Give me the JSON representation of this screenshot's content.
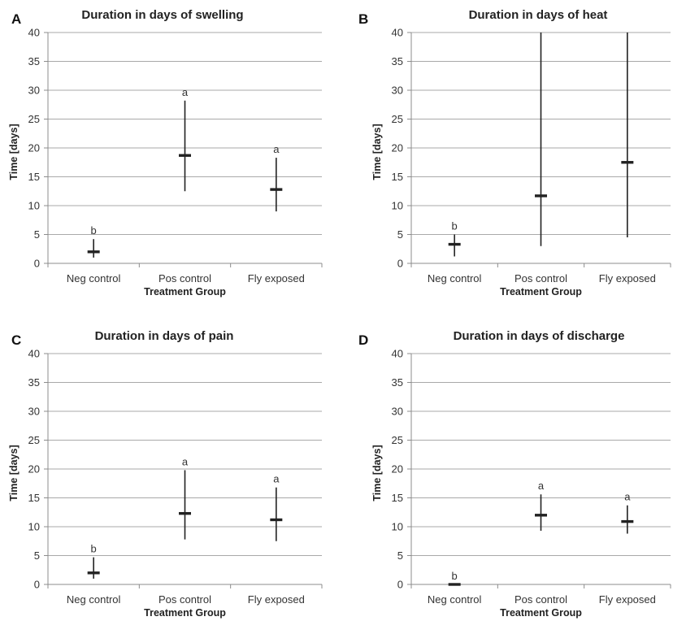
{
  "chart_data": [
    {
      "type": "range",
      "letter": "A",
      "title": "Duration in days of swelling",
      "xlabel": "Treatment Group",
      "ylabel": "Time [days]",
      "ylim": [
        0,
        40
      ],
      "yticks": [
        0,
        5,
        10,
        15,
        20,
        25,
        30,
        35,
        40
      ],
      "categories": [
        "Neg control",
        "Pos control",
        "Fly exposed"
      ],
      "median": [
        2,
        18.7,
        12.8
      ],
      "low": [
        1,
        12.5,
        9
      ],
      "high": [
        4.2,
        28.2,
        18.3
      ],
      "labels": [
        "b",
        "a",
        "a"
      ]
    },
    {
      "type": "range",
      "letter": "B",
      "title": "Duration in days of heat",
      "xlabel": "Treatment Group",
      "ylabel": "Time [days]",
      "ylim": [
        0,
        40
      ],
      "yticks": [
        0,
        5,
        10,
        15,
        20,
        25,
        30,
        35,
        40
      ],
      "categories": [
        "Neg control",
        "Pos control",
        "Fly exposed"
      ],
      "median": [
        3.3,
        11.7,
        17.5
      ],
      "low": [
        1.2,
        3,
        4.5
      ],
      "high": [
        5,
        40,
        40
      ],
      "labels": [
        "b",
        "",
        ""
      ]
    },
    {
      "type": "range",
      "letter": "C",
      "title": "Duration in days of pain",
      "xlabel": "Treatment Group",
      "ylabel": "Time [days]",
      "ylim": [
        0,
        40
      ],
      "yticks": [
        0,
        5,
        10,
        15,
        20,
        25,
        30,
        35,
        40
      ],
      "categories": [
        "Neg control",
        "Pos control",
        "Fly exposed"
      ],
      "median": [
        2,
        12.3,
        11.2
      ],
      "low": [
        1,
        7.8,
        7.5
      ],
      "high": [
        4.7,
        19.8,
        16.8
      ],
      "labels": [
        "b",
        "a",
        "a"
      ]
    },
    {
      "type": "range",
      "letter": "D",
      "title": "Duration in days of discharge",
      "xlabel": "Treatment Group",
      "ylabel": "Time [days]",
      "ylim": [
        0,
        40
      ],
      "yticks": [
        0,
        5,
        10,
        15,
        20,
        25,
        30,
        35,
        40
      ],
      "categories": [
        "Neg control",
        "Pos control",
        "Fly exposed"
      ],
      "median": [
        0,
        12,
        10.9
      ],
      "low": [
        0,
        9.3,
        8.8
      ],
      "high": [
        0,
        15.6,
        13.7
      ],
      "labels": [
        "b",
        "a",
        "a"
      ]
    }
  ]
}
